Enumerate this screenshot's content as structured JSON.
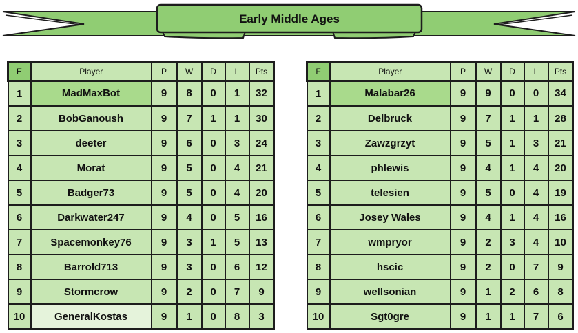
{
  "banner": {
    "title": "Early Middle Ages"
  },
  "colors": {
    "main_green": "#90cd73",
    "cell_green": "#c7e6b3",
    "leader_green": "#a9da8c",
    "pale_green": "#e5f3db",
    "border": "#1d1d1d"
  },
  "tables": [
    {
      "group": "E",
      "headers": [
        "E",
        "Player",
        "P",
        "W",
        "D",
        "L",
        "Pts"
      ],
      "rows": [
        {
          "rank": "1",
          "player": "MadMaxBot",
          "p": "9",
          "w": "8",
          "d": "0",
          "l": "1",
          "pts": "32",
          "highlight": "leader"
        },
        {
          "rank": "2",
          "player": "BobGanoush",
          "p": "9",
          "w": "7",
          "d": "1",
          "l": "1",
          "pts": "30"
        },
        {
          "rank": "3",
          "player": "deeter",
          "p": "9",
          "w": "6",
          "d": "0",
          "l": "3",
          "pts": "24"
        },
        {
          "rank": "4",
          "player": "Morat",
          "p": "9",
          "w": "5",
          "d": "0",
          "l": "4",
          "pts": "21"
        },
        {
          "rank": "5",
          "player": "Badger73",
          "p": "9",
          "w": "5",
          "d": "0",
          "l": "4",
          "pts": "20"
        },
        {
          "rank": "6",
          "player": "Darkwater247",
          "p": "9",
          "w": "4",
          "d": "0",
          "l": "5",
          "pts": "16"
        },
        {
          "rank": "7",
          "player": "Spacemonkey76",
          "p": "9",
          "w": "3",
          "d": "1",
          "l": "5",
          "pts": "13"
        },
        {
          "rank": "8",
          "player": "Barrold713",
          "p": "9",
          "w": "3",
          "d": "0",
          "l": "6",
          "pts": "12"
        },
        {
          "rank": "9",
          "player": "Stormcrow",
          "p": "9",
          "w": "2",
          "d": "0",
          "l": "7",
          "pts": "9"
        },
        {
          "rank": "10",
          "player": "GeneralKostas",
          "p": "9",
          "w": "1",
          "d": "0",
          "l": "8",
          "pts": "3",
          "highlight": "pale"
        }
      ]
    },
    {
      "group": "F",
      "headers": [
        "F",
        "Player",
        "P",
        "W",
        "D",
        "L",
        "Pts"
      ],
      "rows": [
        {
          "rank": "1",
          "player": "Malabar26",
          "p": "9",
          "w": "9",
          "d": "0",
          "l": "0",
          "pts": "34",
          "highlight": "leader"
        },
        {
          "rank": "2",
          "player": "Delbruck",
          "p": "9",
          "w": "7",
          "d": "1",
          "l": "1",
          "pts": "28"
        },
        {
          "rank": "3",
          "player": "Zawzgrzyt",
          "p": "9",
          "w": "5",
          "d": "1",
          "l": "3",
          "pts": "21"
        },
        {
          "rank": "4",
          "player": "phlewis",
          "p": "9",
          "w": "4",
          "d": "1",
          "l": "4",
          "pts": "20"
        },
        {
          "rank": "5",
          "player": "telesien",
          "p": "9",
          "w": "5",
          "d": "0",
          "l": "4",
          "pts": "19"
        },
        {
          "rank": "6",
          "player": "Josey Wales",
          "p": "9",
          "w": "4",
          "d": "1",
          "l": "4",
          "pts": "16"
        },
        {
          "rank": "7",
          "player": "wmpryor",
          "p": "9",
          "w": "2",
          "d": "3",
          "l": "4",
          "pts": "10"
        },
        {
          "rank": "8",
          "player": "hscic",
          "p": "9",
          "w": "2",
          "d": "0",
          "l": "7",
          "pts": "9"
        },
        {
          "rank": "9",
          "player": "wellsonian",
          "p": "9",
          "w": "1",
          "d": "2",
          "l": "6",
          "pts": "8"
        },
        {
          "rank": "10",
          "player": "Sgt0gre",
          "p": "9",
          "w": "1",
          "d": "1",
          "l": "7",
          "pts": "6"
        }
      ]
    }
  ]
}
